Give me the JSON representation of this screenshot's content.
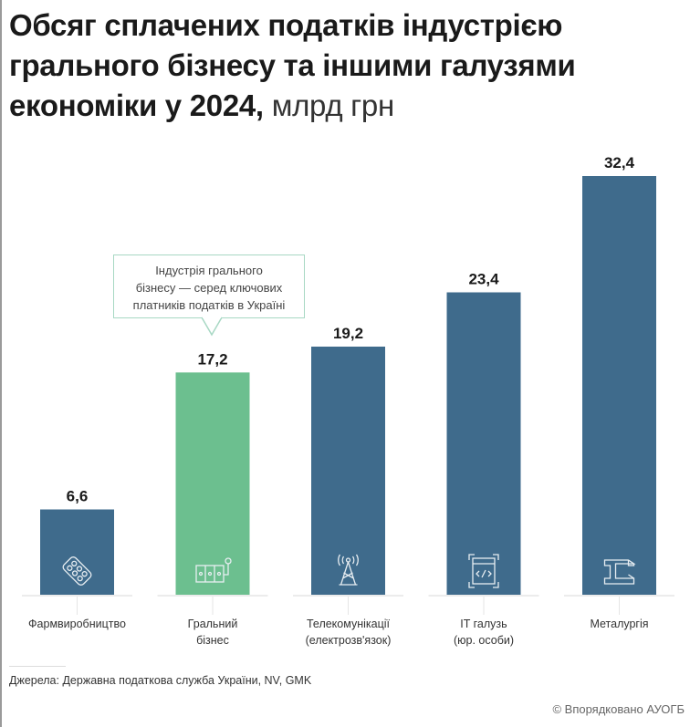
{
  "chart_data": {
    "type": "bar",
    "title": "Обсяг сплачених податків індустрією грального бізнесу та іншими галузями економіки у 2024,",
    "unit": "млрд грн",
    "categories": [
      [
        "Фармвиробництво"
      ],
      [
        "Гральний",
        "бізнес"
      ],
      [
        "Телекомунікації",
        "(електрозв'язок)"
      ],
      [
        "IT галузь",
        "(юр. особи)"
      ],
      [
        "Металургія"
      ]
    ],
    "values": [
      6.6,
      17.2,
      19.2,
      23.4,
      32.4
    ],
    "value_labels": [
      "6,6",
      "17,2",
      "19,2",
      "23,4",
      "32,4"
    ],
    "icons": [
      "pills-icon",
      "slot-machine-icon",
      "radio-tower-icon",
      "code-window-icon",
      "steel-beam-icon"
    ],
    "colors": [
      "#3f6b8c",
      "#6cbf8f",
      "#3f6b8c",
      "#3f6b8c",
      "#3f6b8c"
    ],
    "ylim": [
      0,
      32.4
    ],
    "annotation": [
      "Індустрія грального",
      "бізнесу — серед ключових",
      "платників податків в Україні"
    ]
  },
  "source": "Джерела: Державна податкова служба України, NV, GMK",
  "credit": "© Впорядковано АУОГБ"
}
